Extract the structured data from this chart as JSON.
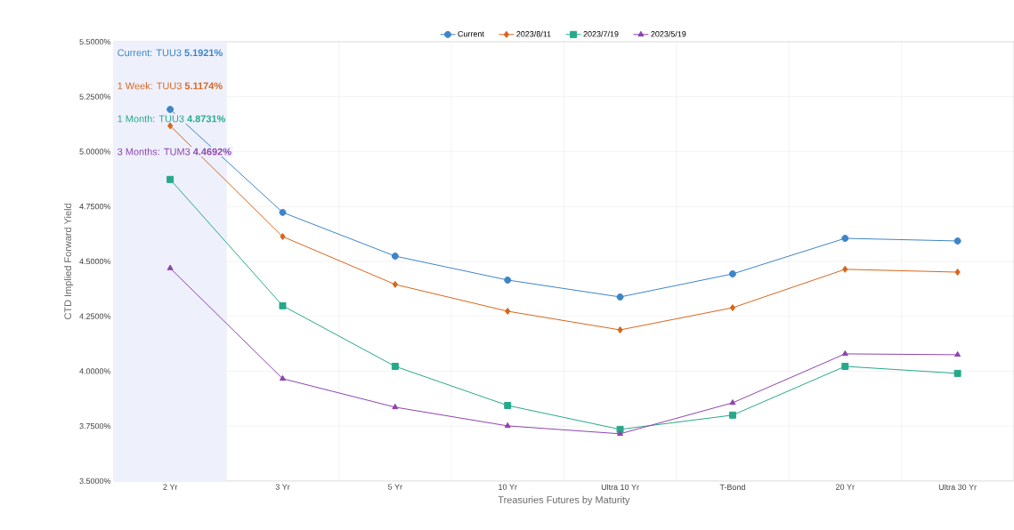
{
  "chart_data": {
    "type": "line",
    "xlabel": "Treasuries Futures by Maturity",
    "ylabel": "CTD Implied Forward Yield",
    "categories": [
      "2 Yr",
      "3 Yr",
      "5 Yr",
      "10 Yr",
      "Ultra 10 Yr",
      "T-Bond",
      "20 Yr",
      "Ultra 30 Yr"
    ],
    "series": [
      {
        "name": "Current",
        "color": "#3d85c6",
        "marker": "circle",
        "values": [
          5.1921,
          4.723,
          4.524,
          4.415,
          4.338,
          4.443,
          4.605,
          4.593
        ]
      },
      {
        "name": "2023/8/11",
        "color": "#d8651a",
        "marker": "diamond",
        "values": [
          5.1174,
          4.613,
          4.395,
          4.273,
          4.188,
          4.289,
          4.464,
          4.451
        ]
      },
      {
        "name": "2023/7/19",
        "color": "#26a98b",
        "marker": "square",
        "values": [
          4.8731,
          4.298,
          4.022,
          3.844,
          3.735,
          3.8,
          4.022,
          3.99
        ]
      },
      {
        "name": "2023/5/19",
        "color": "#8e44ad",
        "marker": "triangle",
        "values": [
          4.4692,
          3.966,
          3.836,
          3.751,
          3.715,
          3.856,
          4.079,
          4.075
        ]
      }
    ],
    "ylim": [
      3.5,
      5.5
    ],
    "yticks": [
      {
        "value": 3.5,
        "label": "3.5000%"
      },
      {
        "value": 3.75,
        "label": "3.7500%"
      },
      {
        "value": 4.0,
        "label": "4.0000%"
      },
      {
        "value": 4.25,
        "label": "4.2500%"
      },
      {
        "value": 4.5,
        "label": "4.5000%"
      },
      {
        "value": 4.75,
        "label": "4.7500%"
      },
      {
        "value": 5.0,
        "label": "5.0000%"
      },
      {
        "value": 5.25,
        "label": "5.2500%"
      },
      {
        "value": 5.5,
        "label": "5.5000%"
      }
    ],
    "annotations": [
      "Current: TUU3 **5.1921%**",
      "1 Week: TUU3 **5.1174%**",
      "1 Month: TUU3 **4.8731%**",
      "3 Months: TUM3 **4.4692%**"
    ],
    "grid": true,
    "legend": "top"
  }
}
